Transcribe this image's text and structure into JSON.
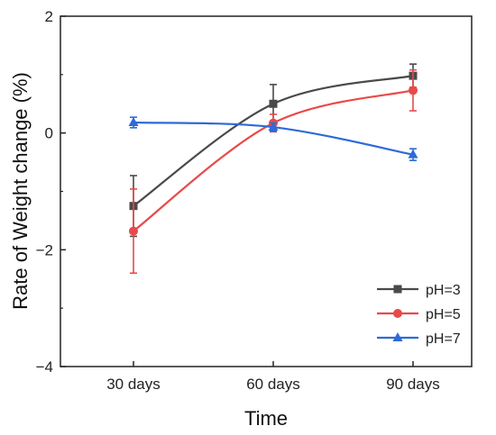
{
  "chart_data": {
    "type": "line",
    "categories": [
      "30 days",
      "60 days",
      "90 days"
    ],
    "xlabel": "Time",
    "ylabel": "Rate of Weight change (%)",
    "ylim": [
      -4,
      2
    ],
    "yticks": [
      -4,
      -2,
      0,
      2
    ],
    "grid": false,
    "legend_position": "bottom-right",
    "series": [
      {
        "name": "pH=3",
        "color": "#4a4a4a",
        "marker": "square",
        "values": [
          -1.25,
          0.5,
          0.98
        ],
        "errors": [
          0.52,
          0.33,
          0.2
        ]
      },
      {
        "name": "pH=5",
        "color": "#e84a4a",
        "marker": "circle",
        "values": [
          -1.68,
          0.17,
          0.73
        ],
        "errors": [
          0.72,
          0.15,
          0.35
        ]
      },
      {
        "name": "pH=7",
        "color": "#2f6ad6",
        "marker": "triangle",
        "values": [
          0.18,
          0.1,
          -0.37
        ],
        "errors": [
          0.09,
          0.07,
          0.1
        ]
      }
    ]
  }
}
